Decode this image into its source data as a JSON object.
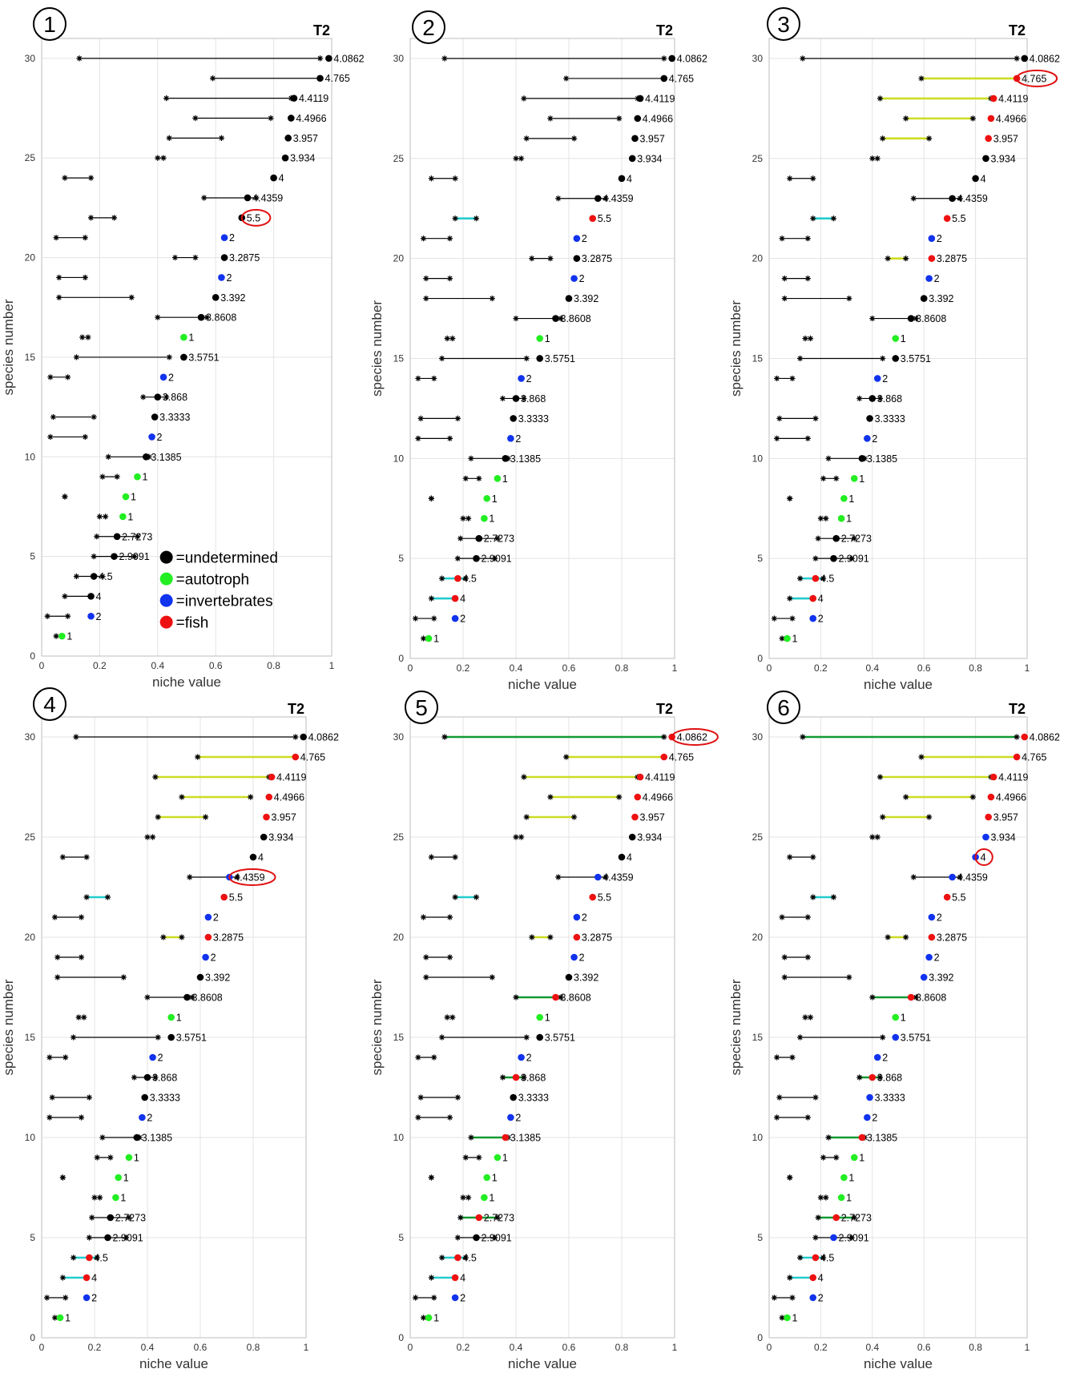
{
  "chart_data": {
    "type": "scatter",
    "xlabel": "niche value",
    "ylabel": "species number",
    "xlim": [
      0,
      1
    ],
    "ylim": [
      0,
      31
    ],
    "xticks": [
      "0",
      "0.2",
      "0.4",
      "0.6",
      "0.8",
      "1"
    ],
    "yticks": [
      "0",
      "5",
      "10",
      "15",
      "20",
      "25",
      "30"
    ],
    "grid": true,
    "legend": {
      "placement": "bottom-right of panel 1",
      "entries": [
        {
          "label": "=undetermined",
          "color": "#000000"
        },
        {
          "label": "=autotroph",
          "color": "#22ee22"
        },
        {
          "label": "=invertebrates",
          "color": "#1133ee"
        },
        {
          "label": "=fish",
          "color": "#ee1111"
        }
      ]
    },
    "colors": {
      "undetermined": "#000000",
      "autotroph": "#22ee22",
      "invertebrates": "#1133ee",
      "fish": "#ee1111",
      "range_black": "#000000",
      "range_cyan": "#22cccc",
      "range_yellow": "#ccdd22",
      "range_green": "#119933",
      "highlight": "#e01010"
    },
    "species": [
      {
        "y": 1,
        "niche": 0.07,
        "lo": 0.05,
        "hi": 0.07,
        "label": "1"
      },
      {
        "y": 2,
        "niche": 0.17,
        "lo": 0.02,
        "hi": 0.09,
        "label": "2"
      },
      {
        "y": 3,
        "niche": 0.17,
        "lo": 0.08,
        "hi": 0.17,
        "label": "4"
      },
      {
        "y": 4,
        "niche": 0.18,
        "lo": 0.12,
        "hi": 0.21,
        "label": "4.5"
      },
      {
        "y": 5,
        "niche": 0.25,
        "lo": 0.18,
        "hi": 0.32,
        "label": "2.9091"
      },
      {
        "y": 6,
        "niche": 0.26,
        "lo": 0.19,
        "hi": 0.33,
        "label": "2.7273"
      },
      {
        "y": 7,
        "niche": 0.28,
        "lo": 0.2,
        "hi": 0.22,
        "label": "1"
      },
      {
        "y": 8,
        "niche": 0.29,
        "lo": 0.08,
        "hi": 0.08,
        "label": "1"
      },
      {
        "y": 9,
        "niche": 0.33,
        "lo": 0.21,
        "hi": 0.26,
        "label": "1"
      },
      {
        "y": 10,
        "niche": 0.36,
        "lo": 0.23,
        "hi": 0.37,
        "label": "3.1385"
      },
      {
        "y": 11,
        "niche": 0.38,
        "lo": 0.03,
        "hi": 0.15,
        "label": "2"
      },
      {
        "y": 12,
        "niche": 0.39,
        "lo": 0.04,
        "hi": 0.18,
        "label": "3.3333"
      },
      {
        "y": 13,
        "niche": 0.4,
        "lo": 0.35,
        "hi": 0.43,
        "label": "3.868"
      },
      {
        "y": 14,
        "niche": 0.42,
        "lo": 0.03,
        "hi": 0.09,
        "label": "2"
      },
      {
        "y": 15,
        "niche": 0.49,
        "lo": 0.12,
        "hi": 0.44,
        "label": "3.5751"
      },
      {
        "y": 16,
        "niche": 0.49,
        "lo": 0.14,
        "hi": 0.16,
        "label": "1"
      },
      {
        "y": 17,
        "niche": 0.55,
        "lo": 0.4,
        "hi": 0.57,
        "label": "3.8608"
      },
      {
        "y": 18,
        "niche": 0.6,
        "lo": 0.06,
        "hi": 0.31,
        "label": "3.392"
      },
      {
        "y": 19,
        "niche": 0.62,
        "lo": 0.06,
        "hi": 0.15,
        "label": "2"
      },
      {
        "y": 20,
        "niche": 0.63,
        "lo": 0.46,
        "hi": 0.53,
        "label": "3.2875"
      },
      {
        "y": 21,
        "niche": 0.63,
        "lo": 0.05,
        "hi": 0.15,
        "label": "2"
      },
      {
        "y": 22,
        "niche": 0.69,
        "lo": 0.17,
        "hi": 0.25,
        "label": "5.5"
      },
      {
        "y": 23,
        "niche": 0.71,
        "lo": 0.56,
        "hi": 0.74,
        "label": "4.4359"
      },
      {
        "y": 24,
        "niche": 0.8,
        "lo": 0.08,
        "hi": 0.17,
        "label": "4"
      },
      {
        "y": 25,
        "niche": 0.84,
        "lo": 0.4,
        "hi": 0.42,
        "label": "3.934"
      },
      {
        "y": 26,
        "niche": 0.85,
        "lo": 0.44,
        "hi": 0.62,
        "label": "3.957"
      },
      {
        "y": 27,
        "niche": 0.86,
        "lo": 0.53,
        "hi": 0.79,
        "label": "4.4966"
      },
      {
        "y": 28,
        "niche": 0.87,
        "lo": 0.43,
        "hi": 0.86,
        "label": "4.4119"
      },
      {
        "y": 29,
        "niche": 0.96,
        "lo": 0.59,
        "hi": 0.96,
        "label": "4.765"
      },
      {
        "y": 30,
        "niche": 0.99,
        "lo": 0.13,
        "hi": 0.96,
        "label": "4.0862"
      }
    ],
    "panels": [
      {
        "number": "1",
        "title": "T2",
        "dot_colors": [
          "autotroph",
          "invertebrates",
          "undetermined",
          "undetermined",
          "undetermined",
          "undetermined",
          "autotroph",
          "autotroph",
          "autotroph",
          "undetermined",
          "invertebrates",
          "undetermined",
          "undetermined",
          "invertebrates",
          "undetermined",
          "autotroph",
          "undetermined",
          "undetermined",
          "invertebrates",
          "undetermined",
          "invertebrates",
          "undetermined",
          "undetermined",
          "undetermined",
          "undetermined",
          "undetermined",
          "undetermined",
          "undetermined",
          "undetermined",
          "undetermined"
        ],
        "range_colors": [
          "black",
          "black",
          "black",
          "black",
          "black",
          "black",
          "black",
          "black",
          "black",
          "black",
          "black",
          "black",
          "black",
          "black",
          "black",
          "black",
          "black",
          "black",
          "black",
          "black",
          "black",
          "black",
          "black",
          "black",
          "black",
          "black",
          "black",
          "black",
          "black",
          "black"
        ],
        "highlight": 22,
        "show_legend": true
      },
      {
        "number": "2",
        "title": "T2",
        "dot_colors": [
          "autotroph",
          "invertebrates",
          "fish",
          "fish",
          "undetermined",
          "undetermined",
          "autotroph",
          "autotroph",
          "autotroph",
          "undetermined",
          "invertebrates",
          "undetermined",
          "undetermined",
          "invertebrates",
          "undetermined",
          "autotroph",
          "undetermined",
          "undetermined",
          "invertebrates",
          "undetermined",
          "invertebrates",
          "fish",
          "undetermined",
          "undetermined",
          "undetermined",
          "undetermined",
          "undetermined",
          "undetermined",
          "undetermined",
          "undetermined"
        ],
        "range_colors": [
          "black",
          "black",
          "cyan",
          "cyan",
          "black",
          "black",
          "black",
          "black",
          "black",
          "black",
          "black",
          "black",
          "black",
          "black",
          "black",
          "black",
          "black",
          "black",
          "black",
          "black",
          "black",
          "cyan",
          "black",
          "black",
          "black",
          "black",
          "black",
          "black",
          "black",
          "black"
        ],
        "highlight": null,
        "show_legend": false
      },
      {
        "number": "3",
        "title": "T2",
        "dot_colors": [
          "autotroph",
          "invertebrates",
          "fish",
          "fish",
          "undetermined",
          "undetermined",
          "autotroph",
          "autotroph",
          "autotroph",
          "undetermined",
          "invertebrates",
          "undetermined",
          "undetermined",
          "invertebrates",
          "undetermined",
          "autotroph",
          "undetermined",
          "undetermined",
          "invertebrates",
          "fish",
          "invertebrates",
          "fish",
          "undetermined",
          "undetermined",
          "undetermined",
          "fish",
          "fish",
          "fish",
          "fish",
          "undetermined"
        ],
        "range_colors": [
          "black",
          "black",
          "cyan",
          "cyan",
          "black",
          "black",
          "black",
          "black",
          "black",
          "black",
          "black",
          "black",
          "black",
          "black",
          "black",
          "black",
          "black",
          "black",
          "black",
          "yellow",
          "black",
          "cyan",
          "black",
          "black",
          "black",
          "yellow",
          "yellow",
          "yellow",
          "yellow",
          "black"
        ],
        "highlight": 29,
        "show_legend": false
      },
      {
        "number": "4",
        "title": "T2",
        "dot_colors": [
          "autotroph",
          "invertebrates",
          "fish",
          "fish",
          "undetermined",
          "undetermined",
          "autotroph",
          "autotroph",
          "autotroph",
          "undetermined",
          "invertebrates",
          "undetermined",
          "undetermined",
          "invertebrates",
          "undetermined",
          "autotroph",
          "undetermined",
          "undetermined",
          "invertebrates",
          "fish",
          "invertebrates",
          "fish",
          "invertebrates",
          "undetermined",
          "undetermined",
          "fish",
          "fish",
          "fish",
          "fish",
          "undetermined"
        ],
        "range_colors": [
          "black",
          "black",
          "cyan",
          "cyan",
          "black",
          "black",
          "black",
          "black",
          "black",
          "black",
          "black",
          "black",
          "black",
          "black",
          "black",
          "black",
          "black",
          "black",
          "black",
          "yellow",
          "black",
          "cyan",
          "black",
          "black",
          "black",
          "yellow",
          "yellow",
          "yellow",
          "yellow",
          "black"
        ],
        "highlight": 23,
        "show_legend": false
      },
      {
        "number": "5",
        "title": "T2",
        "dot_colors": [
          "autotroph",
          "invertebrates",
          "fish",
          "fish",
          "undetermined",
          "fish",
          "autotroph",
          "autotroph",
          "autotroph",
          "fish",
          "invertebrates",
          "undetermined",
          "fish",
          "invertebrates",
          "undetermined",
          "autotroph",
          "fish",
          "undetermined",
          "invertebrates",
          "fish",
          "invertebrates",
          "fish",
          "invertebrates",
          "undetermined",
          "undetermined",
          "fish",
          "fish",
          "fish",
          "fish",
          "fish"
        ],
        "range_colors": [
          "black",
          "black",
          "cyan",
          "cyan",
          "black",
          "green",
          "black",
          "black",
          "black",
          "green",
          "black",
          "black",
          "green",
          "black",
          "black",
          "black",
          "green",
          "black",
          "black",
          "yellow",
          "black",
          "cyan",
          "black",
          "black",
          "black",
          "yellow",
          "yellow",
          "yellow",
          "yellow",
          "green"
        ],
        "highlight": 30,
        "show_legend": false
      },
      {
        "number": "6",
        "title": "T2",
        "dot_colors": [
          "autotroph",
          "invertebrates",
          "fish",
          "fish",
          "invertebrates",
          "fish",
          "autotroph",
          "autotroph",
          "autotroph",
          "fish",
          "invertebrates",
          "invertebrates",
          "fish",
          "invertebrates",
          "invertebrates",
          "autotroph",
          "fish",
          "invertebrates",
          "invertebrates",
          "fish",
          "invertebrates",
          "fish",
          "invertebrates",
          "invertebrates",
          "invertebrates",
          "fish",
          "fish",
          "fish",
          "fish",
          "fish"
        ],
        "range_colors": [
          "black",
          "black",
          "cyan",
          "cyan",
          "black",
          "green",
          "black",
          "black",
          "black",
          "green",
          "black",
          "black",
          "green",
          "black",
          "black",
          "black",
          "green",
          "black",
          "black",
          "yellow",
          "black",
          "cyan",
          "black",
          "black",
          "black",
          "yellow",
          "yellow",
          "yellow",
          "yellow",
          "green"
        ],
        "highlight": 24,
        "show_legend": false
      }
    ]
  }
}
